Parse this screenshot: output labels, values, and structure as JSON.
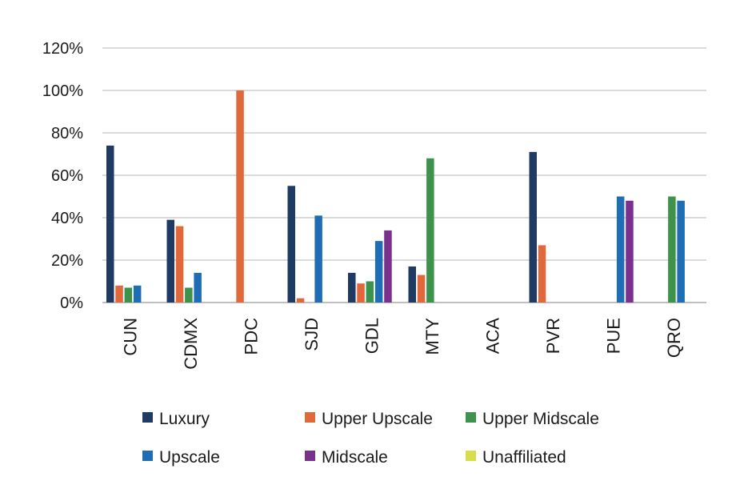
{
  "chart_data": {
    "type": "bar",
    "title": "",
    "xlabel": "",
    "ylabel": "",
    "ylim": [
      0,
      120
    ],
    "yticks": [
      0,
      20,
      40,
      60,
      80,
      100,
      120
    ],
    "ytick_labels": [
      "0%",
      "20%",
      "40%",
      "60%",
      "80%",
      "100%",
      "120%"
    ],
    "grid": true,
    "legend_position": "bottom",
    "categories": [
      "CUN",
      "CDMX",
      "PDC",
      "SJD",
      "GDL",
      "MTY",
      "ACA",
      "PVR",
      "PUE",
      "QRO"
    ],
    "series": [
      {
        "name": "Luxury",
        "color": "#1f3a63",
        "values": [
          74,
          39,
          0,
          55,
          14,
          17,
          0,
          71,
          0,
          0
        ]
      },
      {
        "name": "Upper Upscale",
        "color": "#e0683a",
        "values": [
          8,
          36,
          100,
          2,
          9,
          13,
          0,
          27,
          0,
          0
        ]
      },
      {
        "name": "Upper Midscale",
        "color": "#3d934b",
        "values": [
          7,
          7,
          0,
          0,
          10,
          68,
          0,
          0,
          0,
          50
        ]
      },
      {
        "name": "Upscale",
        "color": "#1f6eb5",
        "values": [
          8,
          14,
          0,
          41,
          29,
          0,
          0,
          0,
          50,
          48
        ]
      },
      {
        "name": "Midscale",
        "color": "#7b2f8e",
        "values": [
          0,
          0,
          0,
          0,
          34,
          0,
          0,
          0,
          48,
          0
        ]
      },
      {
        "name": "Unaffiliated",
        "color": "#d8de4a",
        "values": [
          0,
          0,
          0,
          0,
          0,
          0,
          0,
          0,
          0,
          0
        ]
      }
    ]
  }
}
